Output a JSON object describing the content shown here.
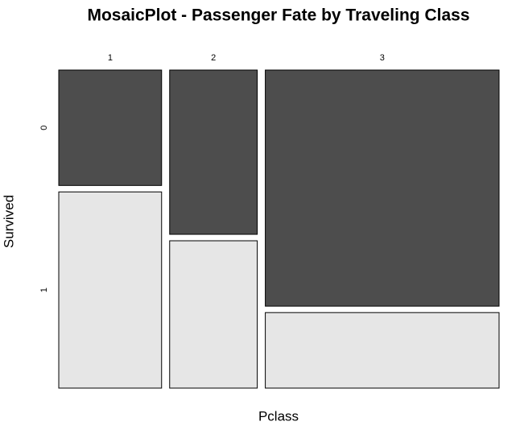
{
  "chart_data": {
    "type": "mosaic",
    "title": "MosaicPlot - Passenger Fate by Traveling Class",
    "x_label": "Pclass",
    "y_label": "Survived",
    "categories": [
      "1",
      "2",
      "3"
    ],
    "series": [
      {
        "name": "0",
        "color": "#4d4d4d",
        "values": [
          80,
          97,
          372
        ]
      },
      {
        "name": "1",
        "color": "#e6e6e6",
        "values": [
          136,
          87,
          119
        ]
      }
    ]
  }
}
